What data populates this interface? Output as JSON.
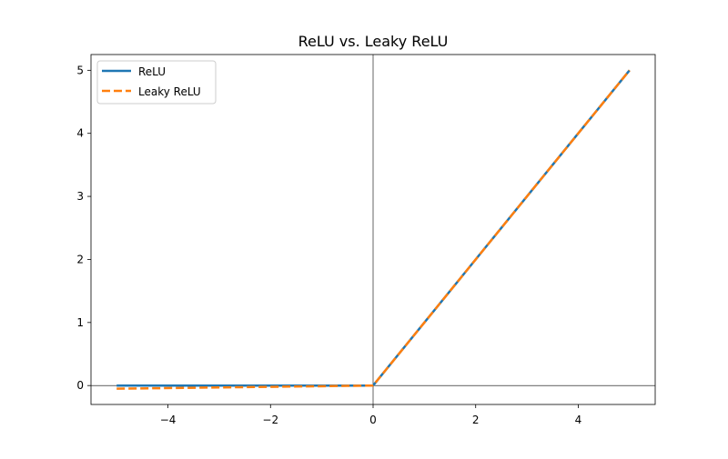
{
  "chart_data": {
    "type": "line",
    "title": "ReLU vs. Leaky ReLU",
    "xlabel": "",
    "ylabel": "",
    "xlim": [
      -5.5,
      5.5
    ],
    "ylim": [
      -0.3,
      5.25
    ],
    "grid": false,
    "legend": "top-left",
    "xticks": [
      -4,
      -2,
      0,
      2,
      4
    ],
    "xtick_labels": [
      "−4",
      "−2",
      "0",
      "2",
      "4"
    ],
    "yticks": [
      0,
      1,
      2,
      3,
      4,
      5
    ],
    "ytick_labels": [
      "0",
      "1",
      "2",
      "3",
      "4",
      "5"
    ],
    "reference_lines": {
      "x": 0,
      "y": 0
    },
    "series": [
      {
        "name": "ReLU",
        "style": "solid",
        "color": "#1f77b4",
        "x": [
          -5,
          0,
          5
        ],
        "y": [
          0,
          0,
          5
        ]
      },
      {
        "name": "Leaky ReLU",
        "style": "dashed",
        "color": "#ff7f0e",
        "x": [
          -5,
          0,
          5
        ],
        "y": [
          -0.05,
          0,
          5
        ]
      }
    ]
  }
}
